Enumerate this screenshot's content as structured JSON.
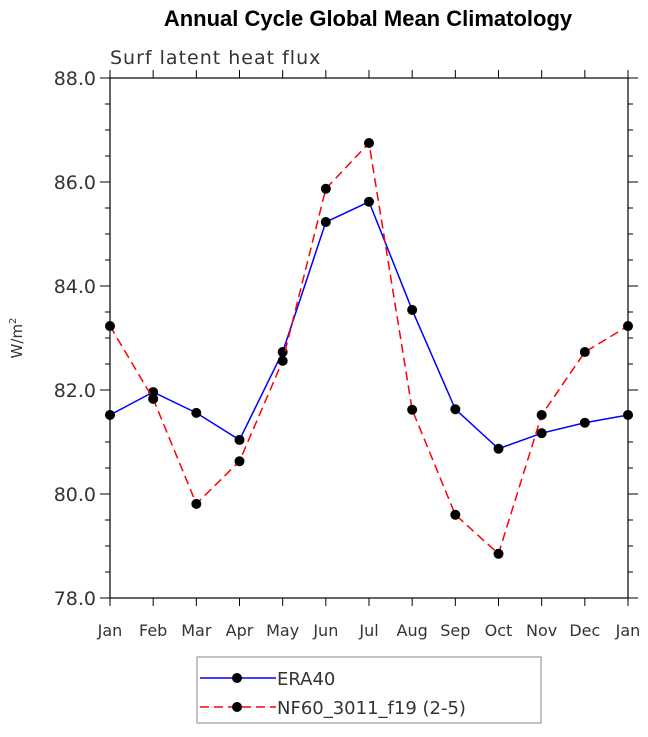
{
  "chart_data": {
    "type": "line",
    "title": "Annual Cycle Global Mean Climatology",
    "subtitle": "Surf latent heat flux",
    "xlabel": "",
    "ylabel": "W/m",
    "ylabel_sup": "2",
    "categories": [
      "Jan",
      "Feb",
      "Mar",
      "Apr",
      "May",
      "Jun",
      "Jul",
      "Aug",
      "Sep",
      "Oct",
      "Nov",
      "Dec",
      "Jan"
    ],
    "ylim": [
      78.0,
      88.0
    ],
    "yticks": [
      "78.0",
      "80.0",
      "82.0",
      "84.0",
      "86.0",
      "88.0"
    ],
    "ytick_values": [
      78,
      80,
      82,
      84,
      86,
      88
    ],
    "legend_position": "bottom-center",
    "series": [
      {
        "name": "ERA40",
        "color": "#0000ff",
        "dash": "solid",
        "values": [
          81.52,
          81.96,
          81.56,
          81.04,
          82.73,
          85.23,
          85.62,
          83.54,
          81.63,
          80.87,
          81.17,
          81.37,
          81.52
        ]
      },
      {
        "name": "NF60_3011_f19 (2-5)",
        "color": "#ff0000",
        "dash": "dashed",
        "values": [
          83.23,
          81.83,
          79.81,
          80.63,
          82.56,
          85.87,
          86.75,
          81.62,
          79.6,
          78.85,
          81.52,
          82.73,
          83.23
        ]
      }
    ]
  }
}
